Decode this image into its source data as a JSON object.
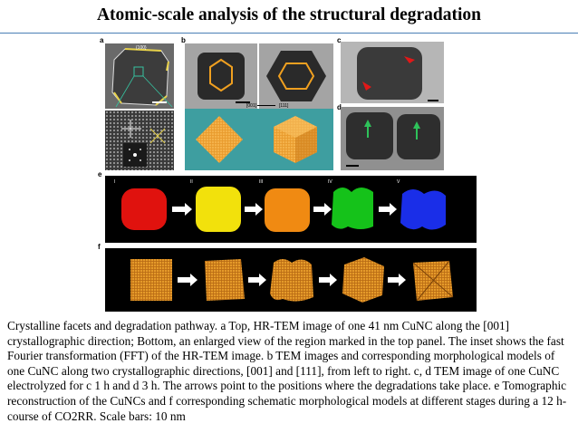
{
  "slide": {
    "title": "Atomic-scale analysis of the structural degradation"
  },
  "figure": {
    "panel_labels": [
      "a",
      "b",
      "c",
      "d",
      "e",
      "f"
    ],
    "panel_a": {
      "top_label": "{100}"
    },
    "panel_b": {
      "direction_left": "[001]",
      "direction_right": "[111]"
    },
    "panel_e": {
      "stage_labels": [
        "I",
        "II",
        "III",
        "IV",
        "V"
      ],
      "stage_colors": [
        "#e0120e",
        "#f2e10c",
        "#f08a12",
        "#15c21a",
        "#1a2ee8"
      ]
    },
    "panel_f": {
      "model_color": "#e59a2a"
    }
  },
  "caption": {
    "text": "Crystalline facets and degradation pathway. a Top, HR-TEM image of one 41 nm CuNC along the [001] crystallographic direction; Bottom, an enlarged view of the region marked in the top panel. The inset shows the fast Fourier transformation (FFT) of the HR-TEM image. b TEM images and corresponding morphological models of one CuNC along two crystallographic directions, [001] and [111], from left to right. c, d TEM image of one CuNC electrolyzed for c 1 h and d 3 h. The arrows point to the positions where the degradations take place. e Tomographic reconstruction of the CuNCs and f corresponding schematic morphological models at different stages during a 12 h-course of CO2RR. Scale bars: 10 nm"
  }
}
